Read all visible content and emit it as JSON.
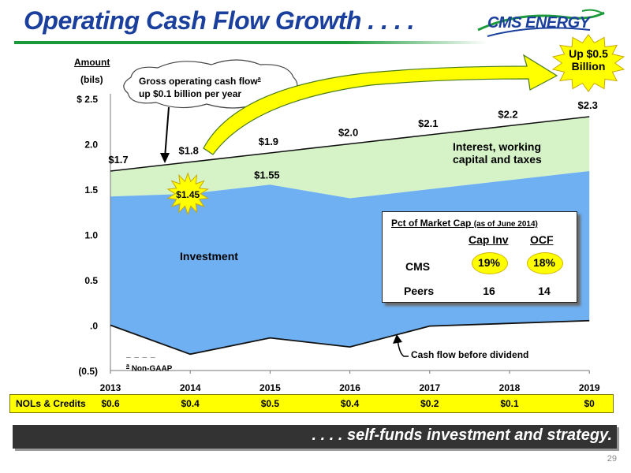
{
  "title": "Operating Cash Flow Growth . . . .",
  "logo": {
    "text": "CMS ENERGY",
    "colors": [
      "#1a3f9c",
      "#1b9a3a"
    ]
  },
  "chart_data": {
    "type": "area",
    "y_axis_title": [
      "Amount",
      "(bils)"
    ],
    "y_ticks": [
      {
        "value": 2.5,
        "label": "$ 2.5"
      },
      {
        "value": 2.0,
        "label": "2.0"
      },
      {
        "value": 1.5,
        "label": "1.5"
      },
      {
        "value": 1.0,
        "label": "1.0"
      },
      {
        "value": 0.5,
        "label": "0.5"
      },
      {
        "value": 0.0,
        "label": ".0"
      },
      {
        "value": -0.5,
        "label": "(0.5)"
      }
    ],
    "ylim": [
      -0.5,
      2.5
    ],
    "x": [
      "2013",
      "2014",
      "2015",
      "2016",
      "2017",
      "2018",
      "2019"
    ],
    "series": [
      {
        "name": "Interest, working capital and taxes",
        "values": [
          1.7,
          1.8,
          1.9,
          2.0,
          2.1,
          2.2,
          2.3
        ],
        "color": "#d6f3c7"
      },
      {
        "name": "Investment",
        "values": [
          1.42,
          1.45,
          1.55,
          1.4,
          1.5,
          1.6,
          1.7
        ],
        "color": "#6fb0f2"
      },
      {
        "name": "Cash flow before dividend",
        "values": [
          0.0,
          -0.32,
          -0.14,
          -0.24,
          -0.01,
          0.02,
          0.05
        ]
      }
    ],
    "total_labels": [
      "$1.7",
      "$1.8",
      "$1.9",
      "$2.0",
      "$2.1",
      "$2.2",
      "$2.3"
    ],
    "inner_labels": [
      {
        "index": 1,
        "text": "$1.45"
      },
      {
        "index": 2,
        "text": "$1.55"
      }
    ],
    "grid": false
  },
  "annotations": {
    "gross": "Gross operating cash flow",
    "gross_sup": "a",
    "gross_line2": "up $0.1 billion per year",
    "up_badge": [
      "Up $0.5",
      "Billion"
    ],
    "interest_label": [
      "Interest, working",
      "capital and taxes"
    ],
    "investment_label": "Investment",
    "cfbd_label": "Cash flow before dividend",
    "footnote_dashes": "_ _ _ _",
    "footnote_sup": "a",
    "footnote": "Non-GAAP"
  },
  "market_cap": {
    "title": "Pct of Market Cap",
    "title_note": "(as of June 2014)",
    "col1": "Cap Inv",
    "col2": "OCF",
    "rows": [
      {
        "label": "CMS",
        "cap_inv": "19%",
        "ocf": "18%"
      },
      {
        "label": "Peers",
        "cap_inv": "16",
        "ocf": "14"
      }
    ]
  },
  "nols": {
    "label": "NOLs & Credits",
    "values": [
      "$0.6",
      "$0.4",
      "$0.5",
      "$0.4",
      "$0.2",
      "$0.1",
      "$0"
    ]
  },
  "footer": ". . . . self-funds investment and strategy.",
  "page_number": "29",
  "colors": {
    "title": "#1a3f9c",
    "green": "#1b9a3a",
    "highlight": "#ffff00",
    "footer_bg": "#333333"
  }
}
